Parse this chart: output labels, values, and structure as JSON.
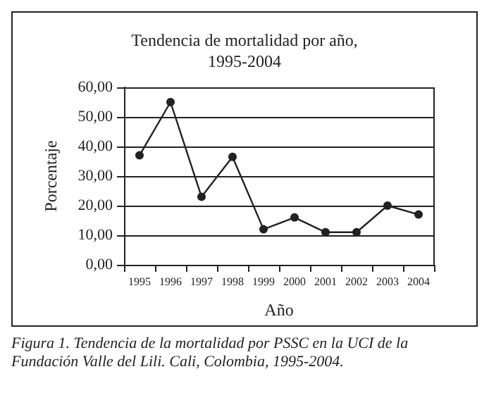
{
  "chart_data": {
    "type": "line",
    "title": "Tendencia de mortalidad por año,\n1995-2004",
    "xlabel": "Año",
    "ylabel": "Porcentaje",
    "categories": [
      "1995",
      "1996",
      "1997",
      "1998",
      "1999",
      "2000",
      "2001",
      "2002",
      "2003",
      "2004"
    ],
    "series": [
      {
        "color": "#222222",
        "values": [
          37,
          55,
          23,
          36.5,
          12,
          16,
          11,
          11,
          20,
          17
        ]
      }
    ],
    "ylim": [
      0,
      60
    ],
    "yticks": [
      {
        "value": 0,
        "label": "0,00"
      },
      {
        "value": 10,
        "label": "10,00"
      },
      {
        "value": 20,
        "label": "20,00"
      },
      {
        "value": 30,
        "label": "30,00"
      },
      {
        "value": 40,
        "label": "40,00"
      },
      {
        "value": 50,
        "label": "50,00"
      },
      {
        "value": 60,
        "label": "60,00"
      }
    ],
    "grid": "y",
    "marker": "circle",
    "line_style": "solid",
    "annotations": [
      "Figura 1. Tendencia de la mortalidad por PSSC en la UCI de la Fundación Valle del Lili. Cali, Colombia, 1995-2004."
    ]
  }
}
